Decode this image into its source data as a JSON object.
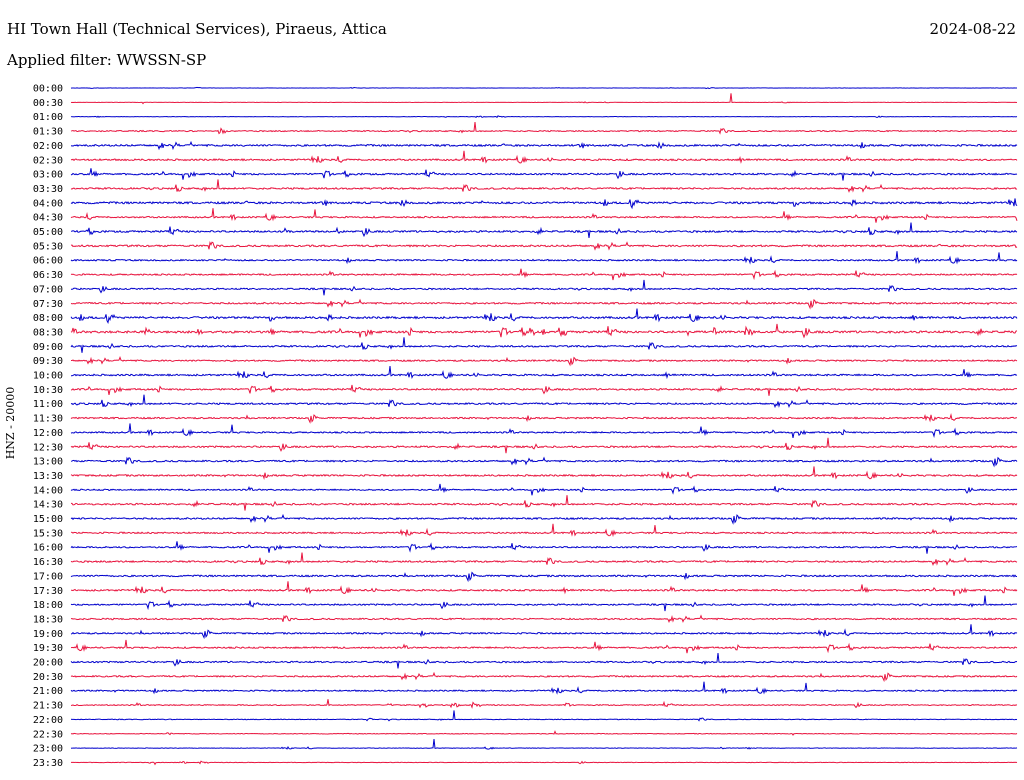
{
  "header": {
    "station": "HI Town Hall (Technical Services), Piraeus, Attica",
    "date": "2024-08-22",
    "filter_text": "Applied filter: WWSSN-SP"
  },
  "chart_data": {
    "type": "line",
    "title": "HI Town Hall (Technical Services), Piraeus, Attica",
    "subtitle": "Applied filter: WWSSN-SP",
    "xlabel": "",
    "ylabel": "HNZ - 20000",
    "grid": false,
    "legend": "none",
    "row_labels": [
      "00:00",
      "00:30",
      "01:00",
      "01:30",
      "02:00",
      "02:30",
      "03:00",
      "03:30",
      "04:00",
      "04:30",
      "05:00",
      "05:30",
      "06:00",
      "06:30",
      "07:00",
      "07:30",
      "08:00",
      "08:30",
      "09:00",
      "09:30",
      "10:00",
      "10:30",
      "11:00",
      "11:30",
      "12:00",
      "12:30",
      "13:00",
      "13:30",
      "14:00",
      "14:30",
      "15:00",
      "15:30",
      "16:00",
      "16:30",
      "17:00",
      "17:30",
      "18:00",
      "18:30",
      "19:00",
      "19:30",
      "20:00",
      "20:30",
      "21:00",
      "21:30",
      "22:00",
      "22:30",
      "23:00",
      "23:30"
    ],
    "row_colors": [
      "#0000cc",
      "#e8153f"
    ],
    "noise_level": [
      0.08,
      0.08,
      0.1,
      0.35,
      0.55,
      0.5,
      0.5,
      0.5,
      0.6,
      0.45,
      0.55,
      0.55,
      0.45,
      0.45,
      0.45,
      0.5,
      0.6,
      0.65,
      0.5,
      0.45,
      0.5,
      0.5,
      0.5,
      0.45,
      0.45,
      0.5,
      0.5,
      0.5,
      0.4,
      0.5,
      0.5,
      0.45,
      0.45,
      0.5,
      0.5,
      0.5,
      0.45,
      0.45,
      0.45,
      0.45,
      0.45,
      0.45,
      0.4,
      0.3,
      0.2,
      0.2,
      0.15,
      0.15
    ]
  }
}
